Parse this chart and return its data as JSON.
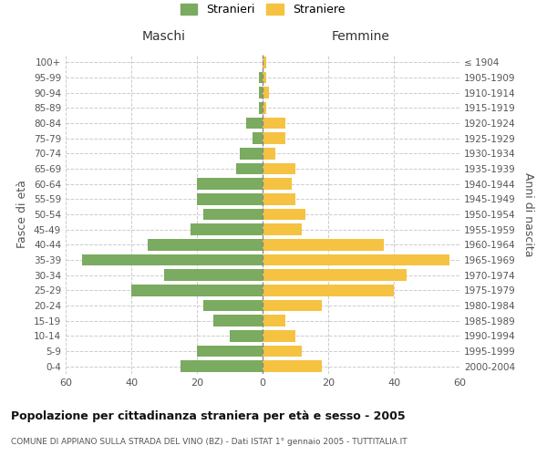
{
  "age_groups": [
    "0-4",
    "5-9",
    "10-14",
    "15-19",
    "20-24",
    "25-29",
    "30-34",
    "35-39",
    "40-44",
    "45-49",
    "50-54",
    "55-59",
    "60-64",
    "65-69",
    "70-74",
    "75-79",
    "80-84",
    "85-89",
    "90-94",
    "95-99",
    "100+"
  ],
  "birth_years": [
    "2000-2004",
    "1995-1999",
    "1990-1994",
    "1985-1989",
    "1980-1984",
    "1975-1979",
    "1970-1974",
    "1965-1969",
    "1960-1964",
    "1955-1959",
    "1950-1954",
    "1945-1949",
    "1940-1944",
    "1935-1939",
    "1930-1934",
    "1925-1929",
    "1920-1924",
    "1915-1919",
    "1910-1914",
    "1905-1909",
    "≤ 1904"
  ],
  "maschi": [
    25,
    20,
    10,
    15,
    18,
    40,
    30,
    55,
    35,
    22,
    18,
    20,
    20,
    8,
    7,
    3,
    5,
    1,
    1,
    1,
    0
  ],
  "femmine": [
    18,
    12,
    10,
    7,
    18,
    40,
    44,
    57,
    37,
    12,
    13,
    10,
    9,
    10,
    4,
    7,
    7,
    1,
    2,
    1,
    1
  ],
  "color_maschi": "#7aab60",
  "color_femmine": "#f5c242",
  "title": "Popolazione per cittadinanza straniera per età e sesso - 2005",
  "subtitle": "COMUNE DI APPIANO SULLA STRADA DEL VINO (BZ) - Dati ISTAT 1° gennaio 2005 - TUTTITALIA.IT",
  "xlabel_left": "Maschi",
  "xlabel_right": "Femmine",
  "ylabel_left": "Fasce di età",
  "ylabel_right": "Anni di nascita",
  "legend_maschi": "Stranieri",
  "legend_femmine": "Straniere",
  "xlim": 60,
  "bg_color": "#ffffff",
  "grid_color": "#cccccc"
}
